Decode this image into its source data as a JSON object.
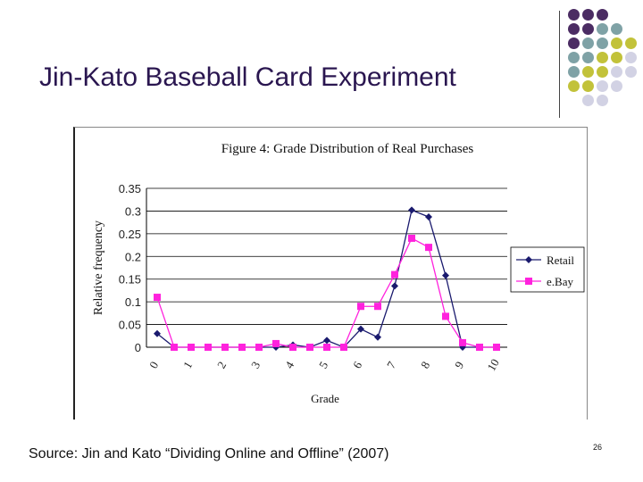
{
  "slide": {
    "title": "Jin-Kato Baseball Card Experiment",
    "source": "Source: Jin and Kato “Dividing Online and Offline” (2007)",
    "page_number": "26"
  },
  "decor": {
    "dot_colors": {
      "purple": "#4b2c63",
      "teal": "#7fa2a6",
      "olive": "#c2c23a",
      "lavender": "#d2d2e4"
    }
  },
  "chart_data": {
    "type": "line",
    "title": "Figure 4: Grade Distribution of Real Purchases",
    "xlabel": "Grade",
    "ylabel": "Relative frequency",
    "x": [
      0,
      0.5,
      1,
      1.5,
      2,
      2.5,
      3,
      3.5,
      4,
      4.5,
      5,
      5.5,
      6,
      6.5,
      7,
      7.5,
      8,
      8.5,
      9,
      9.5,
      10
    ],
    "x_tick_labels": [
      "0",
      "1",
      "2",
      "3",
      "4",
      "5",
      "6",
      "7",
      "8",
      "9",
      "10"
    ],
    "x_ticks": [
      0,
      1,
      2,
      3,
      4,
      5,
      6,
      7,
      8,
      9,
      10
    ],
    "y_tick_labels": [
      "0",
      "0.05",
      "0.1",
      "0.15",
      "0.2",
      "0.25",
      "0.3",
      "0.35"
    ],
    "y_ticks": [
      0,
      0.05,
      0.1,
      0.15,
      0.2,
      0.25,
      0.3,
      0.35
    ],
    "xlim": [
      0,
      10
    ],
    "ylim": [
      0,
      0.35
    ],
    "grid": "horizontal",
    "legend_position": "right",
    "series": [
      {
        "name": "Retail",
        "color": "#1a1a6e",
        "marker": "diamond",
        "values": [
          0.03,
          0,
          0,
          0,
          0,
          0,
          0,
          0,
          0.005,
          0,
          0.015,
          0,
          0.04,
          0.022,
          0.135,
          0.302,
          0.287,
          0.158,
          0,
          0,
          0
        ]
      },
      {
        "name": "e.Bay",
        "color": "#ff22dd",
        "marker": "square",
        "values": [
          0.11,
          0,
          0,
          0,
          0,
          0,
          0,
          0.008,
          0,
          0,
          0,
          0,
          0.09,
          0.09,
          0.16,
          0.24,
          0.22,
          0.068,
          0.01,
          0,
          0
        ]
      }
    ]
  }
}
